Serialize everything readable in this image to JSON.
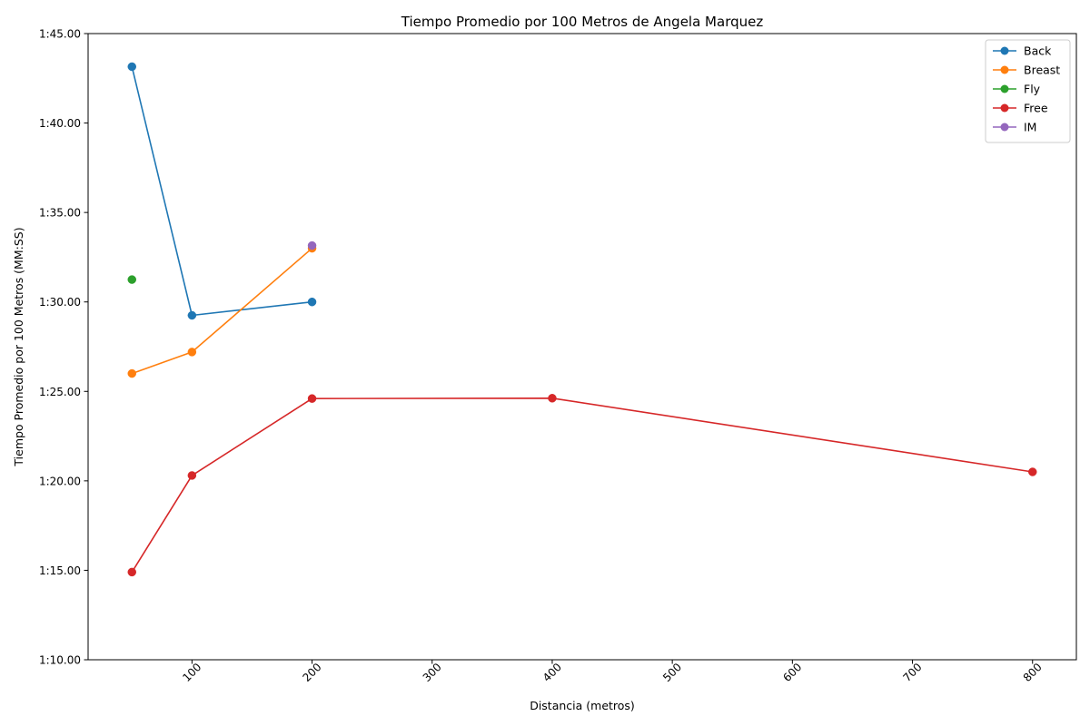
{
  "chart_data": {
    "type": "line",
    "title": "Tiempo Promedio por 100 Metros de Angela Marquez",
    "xlabel": "Distancia (metros)",
    "ylabel": "Tiempo Promedio por 100 Metros (MM:SS)",
    "xlim": [
      13.5,
      836.5
    ],
    "ylim": [
      70,
      105
    ],
    "x_ticks": [
      100,
      200,
      300,
      400,
      500,
      600,
      700,
      800
    ],
    "y_ticks": [
      70,
      75,
      80,
      85,
      90,
      95,
      100,
      105
    ],
    "y_tick_labels": [
      "1:10.00",
      "1:15.00",
      "1:20.00",
      "1:25.00",
      "1:30.00",
      "1:35.00",
      "1:40.00",
      "1:45.00"
    ],
    "grid": false,
    "legend_position": "top-right",
    "series": [
      {
        "name": "Back",
        "color": "#1f77b4",
        "points": [
          [
            50,
            103.15
          ],
          [
            100,
            89.25
          ],
          [
            200,
            90.0
          ]
        ]
      },
      {
        "name": "Breast",
        "color": "#ff7f0e",
        "points": [
          [
            50,
            86.0
          ],
          [
            100,
            87.2
          ],
          [
            200,
            93.0
          ]
        ]
      },
      {
        "name": "Fly",
        "color": "#2ca02c",
        "points": [
          [
            50,
            91.25
          ]
        ]
      },
      {
        "name": "Free",
        "color": "#d62728",
        "points": [
          [
            50,
            74.9
          ],
          [
            100,
            80.3
          ],
          [
            200,
            84.6
          ],
          [
            400,
            84.62
          ],
          [
            800,
            80.5
          ]
        ]
      },
      {
        "name": "IM",
        "color": "#9467bd",
        "points": [
          [
            200,
            93.15
          ]
        ]
      }
    ]
  }
}
